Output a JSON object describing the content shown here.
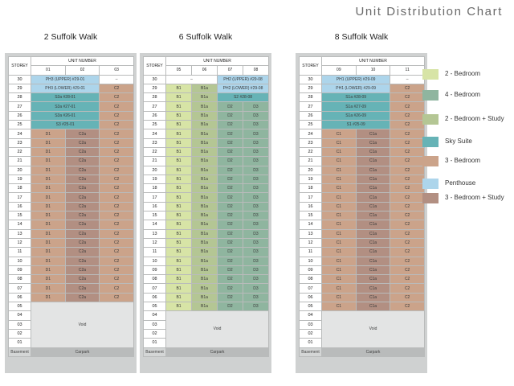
{
  "page_title": "Unit Distribution Chart",
  "storey_header": "STOREY",
  "unit_number_header": "UNIT NUMBER",
  "void_label": "Void",
  "carpark_label": "Carpark",
  "basement_label": "Basement",
  "colors": {
    "2br": "#d7e4a6",
    "4br": "#8fb59f",
    "2bs": "#b4c694",
    "sky": "#66b3b6",
    "3br": "#cba38a",
    "ph": "#add5eb",
    "3bs": "#b28f82"
  },
  "legend": [
    {
      "key": "2br",
      "label": "2 - Bedroom"
    },
    {
      "key": "4br",
      "label": "4 - Bedroom"
    },
    {
      "key": "2bs",
      "label": "2 - Bedroom + Study"
    },
    {
      "key": "sky",
      "label": "Sky Suite"
    },
    {
      "key": "3br",
      "label": "3 - Bedroom"
    },
    {
      "key": "ph",
      "label": "Penthouse"
    },
    {
      "key": "3bs",
      "label": "3 - Bedroom + Study"
    }
  ],
  "blocks": [
    {
      "name": "2 Suffolk Walk",
      "units": [
        "01",
        "02",
        "03"
      ],
      "top_floors": [
        {
          "storey": "30",
          "cells": [
            {
              "text": "PH3 (UPPER) #29-01",
              "type": "ph",
              "span": 2
            },
            {
              "text": "–",
              "type": "empty"
            }
          ]
        },
        {
          "storey": "29",
          "cells": [
            {
              "text": "PH3 (LOWER) #29-01",
              "type": "ph",
              "span": 2
            },
            {
              "text": "C2",
              "type": "3br"
            }
          ]
        },
        {
          "storey": "28",
          "cells": [
            {
              "text": "S3a #28-01",
              "type": "sky",
              "span": 2
            },
            {
              "text": "C2",
              "type": "3br"
            }
          ]
        },
        {
          "storey": "27",
          "cells": [
            {
              "text": "S3a #27-01",
              "type": "sky",
              "span": 2
            },
            {
              "text": "C2",
              "type": "3br"
            }
          ]
        },
        {
          "storey": "26",
          "cells": [
            {
              "text": "S3a #26-01",
              "type": "sky",
              "span": 2
            },
            {
              "text": "C2",
              "type": "3br"
            }
          ]
        },
        {
          "storey": "25",
          "cells": [
            {
              "text": "S3 #25-01",
              "type": "sky",
              "span": 2
            },
            {
              "text": "C2",
              "type": "3br"
            }
          ]
        }
      ],
      "typical": {
        "from": 24,
        "to": 6,
        "cells": [
          {
            "text": "D1",
            "type": "3br"
          },
          {
            "text": "C2a",
            "type": "3bs"
          },
          {
            "text": "C2",
            "type": "3br"
          }
        ]
      },
      "void_from": 5
    },
    {
      "name": "6 Suffolk Walk",
      "units": [
        "05",
        "06",
        "07",
        "08"
      ],
      "top_floors": [
        {
          "storey": "30",
          "cells": [
            {
              "text": "–",
              "type": "empty",
              "span": 2
            },
            {
              "text": "PH2 (UPPER) #29-08",
              "type": "ph",
              "span": 2
            }
          ]
        },
        {
          "storey": "29",
          "cells": [
            {
              "text": "B1",
              "type": "2br"
            },
            {
              "text": "B1a",
              "type": "2bs"
            },
            {
              "text": "PH2 (LOWER) #29-08",
              "type": "ph",
              "span": 2
            }
          ]
        },
        {
          "storey": "28",
          "cells": [
            {
              "text": "B1",
              "type": "2br"
            },
            {
              "text": "B1a",
              "type": "2bs"
            },
            {
              "text": "S2 #28-08",
              "type": "sky",
              "span": 2
            }
          ]
        }
      ],
      "typical": {
        "from": 27,
        "to": 5,
        "cells": [
          {
            "text": "B1",
            "type": "2br"
          },
          {
            "text": "B1a",
            "type": "2bs"
          },
          {
            "text": "D2",
            "type": "4br"
          },
          {
            "text": "D3",
            "type": "4br"
          }
        ]
      },
      "void_from": 4
    },
    {
      "name": "8 Suffolk Walk",
      "units": [
        "09",
        "10",
        "11"
      ],
      "top_floors": [
        {
          "storey": "30",
          "cells": [
            {
              "text": "PH1 (UPPER) #29-09",
              "type": "ph",
              "span": 2
            },
            {
              "text": "–",
              "type": "empty"
            }
          ]
        },
        {
          "storey": "29",
          "cells": [
            {
              "text": "PH1 (LOWER) #29-09",
              "type": "ph",
              "span": 2
            },
            {
              "text": "C2",
              "type": "3br"
            }
          ]
        },
        {
          "storey": "28",
          "cells": [
            {
              "text": "S1a #28-09",
              "type": "sky",
              "span": 2
            },
            {
              "text": "C2",
              "type": "3br"
            }
          ]
        },
        {
          "storey": "27",
          "cells": [
            {
              "text": "S1a #27-09",
              "type": "sky",
              "span": 2
            },
            {
              "text": "C2",
              "type": "3br"
            }
          ]
        },
        {
          "storey": "26",
          "cells": [
            {
              "text": "S1a #26-09",
              "type": "sky",
              "span": 2
            },
            {
              "text": "C2",
              "type": "3br"
            }
          ]
        },
        {
          "storey": "25",
          "cells": [
            {
              "text": "S1 #25-09",
              "type": "sky",
              "span": 2
            },
            {
              "text": "C2",
              "type": "3br"
            }
          ]
        }
      ],
      "typical": {
        "from": 24,
        "to": 5,
        "cells": [
          {
            "text": "C1",
            "type": "3br"
          },
          {
            "text": "C1a",
            "type": "3bs"
          },
          {
            "text": "C2",
            "type": "3br"
          }
        ]
      },
      "void_from": 4
    }
  ]
}
